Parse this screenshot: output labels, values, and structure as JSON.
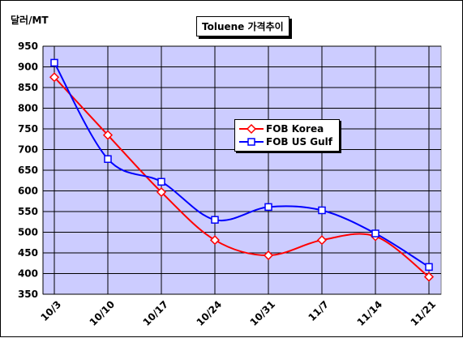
{
  "chart_data": {
    "type": "line",
    "title": "Toluene 가격추이",
    "unit_label": "달러/MT",
    "categories": [
      "10/3",
      "10/10",
      "10/17",
      "10/24",
      "10/31",
      "11/7",
      "11/14",
      "11/21"
    ],
    "ylim": [
      350,
      950
    ],
    "yticks": [
      350,
      400,
      450,
      500,
      550,
      600,
      650,
      700,
      750,
      800,
      850,
      900,
      950
    ],
    "grid": true,
    "legend_position": "center-right",
    "series": [
      {
        "name": "FOB Korea",
        "values": [
          875,
          735,
          597,
          481,
          444,
          481,
          490,
          392
        ],
        "color": "#ff0000",
        "marker": "diamond",
        "smooth": true
      },
      {
        "name": "FOB US Gulf",
        "values": [
          910,
          677,
          622,
          530,
          561,
          553,
          497,
          416
        ],
        "color": "#0000ff",
        "marker": "square",
        "smooth": true
      }
    ],
    "plot_background": "#ccccff"
  }
}
